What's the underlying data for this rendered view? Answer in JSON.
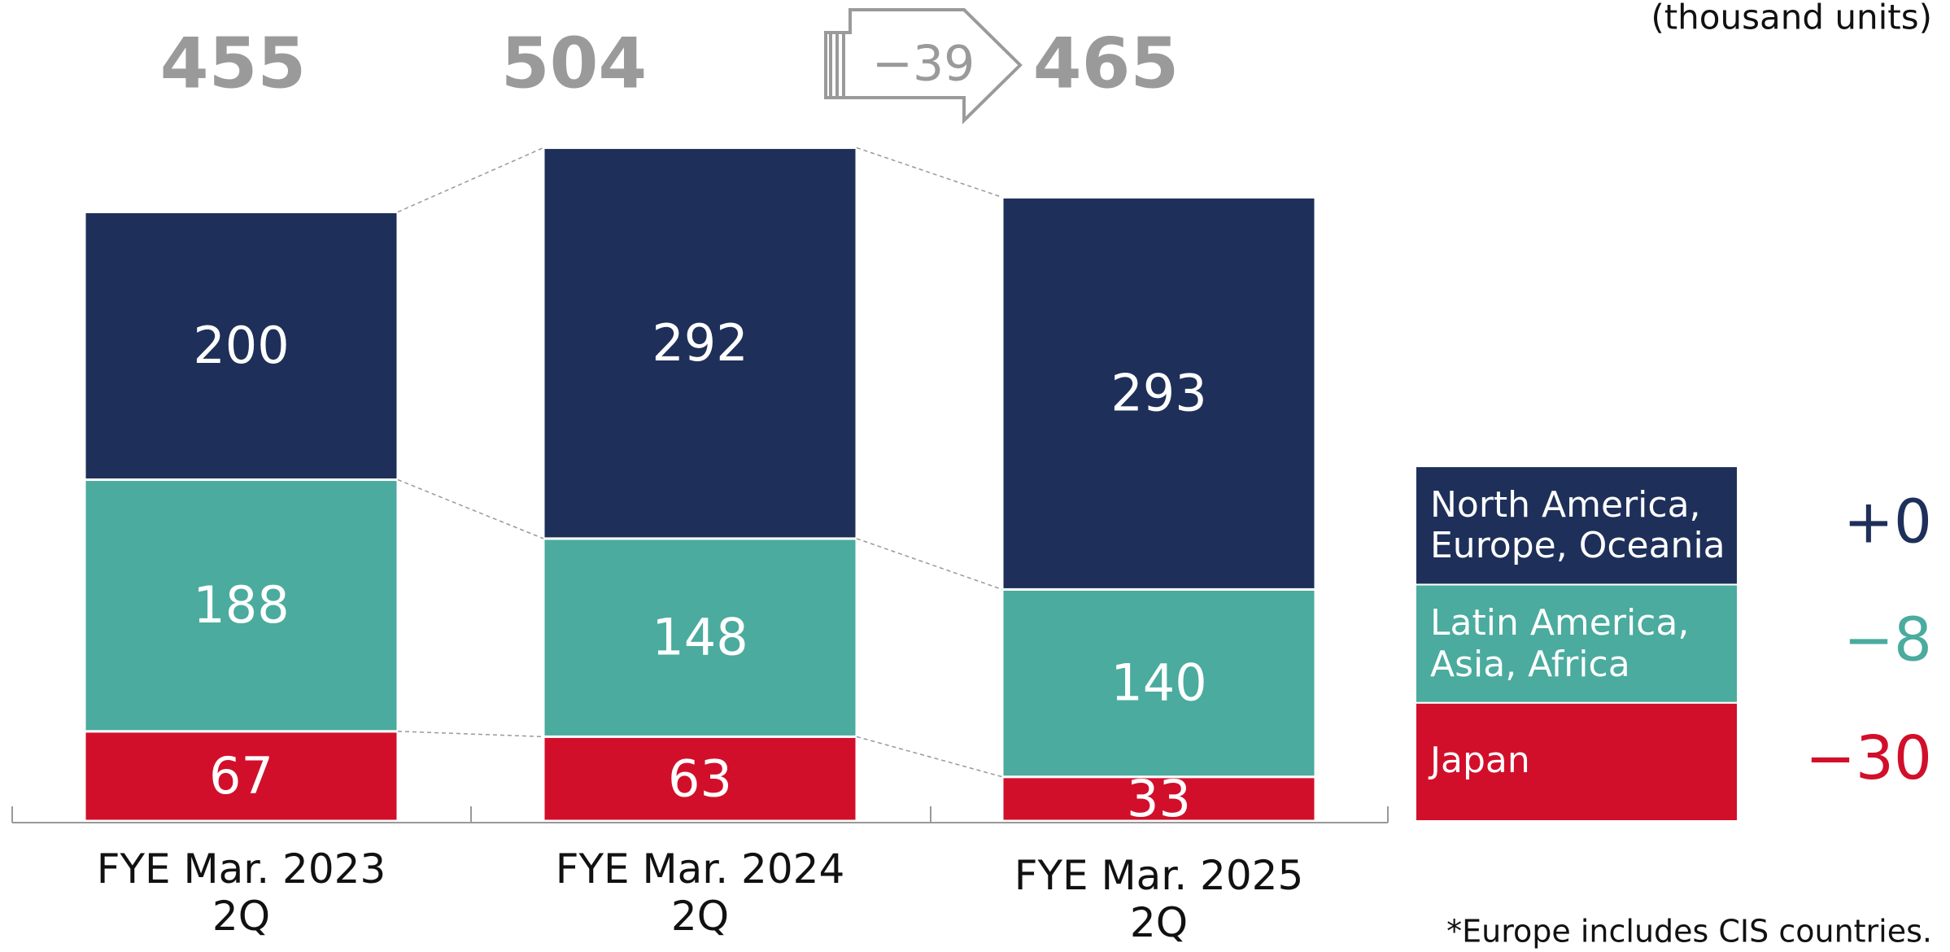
{
  "chart_data": {
    "type": "stacked_bar",
    "unit": "(thousand units)",
    "categories": [
      "FYE Mar. 2023\n2Q",
      "FYE Mar. 2024\n2Q",
      "FYE Mar. 2025\n2Q"
    ],
    "series": [
      {
        "name": "Japan",
        "color": "#d20f2a",
        "values": [
          67,
          63,
          33
        ],
        "change": {
          "value": -30,
          "label": "−30"
        }
      },
      {
        "name": "Latin America,\nAsia, Africa",
        "color": "#4aab9e",
        "values": [
          188,
          148,
          140
        ],
        "change": {
          "value": -8,
          "label": "−8"
        }
      },
      {
        "name": "North America,\nEurope, Oceania",
        "color": "#1e2f5a",
        "values": [
          200,
          292,
          293
        ],
        "change": {
          "value": 0,
          "label": "+0"
        }
      }
    ],
    "totals": [
      455,
      504,
      465
    ],
    "total_color": "#9a9a9a",
    "change": {
      "value": -39,
      "label": "−39"
    },
    "ylim": [
      0,
      600
    ],
    "footnote": "*Europe includes CIS countries."
  }
}
